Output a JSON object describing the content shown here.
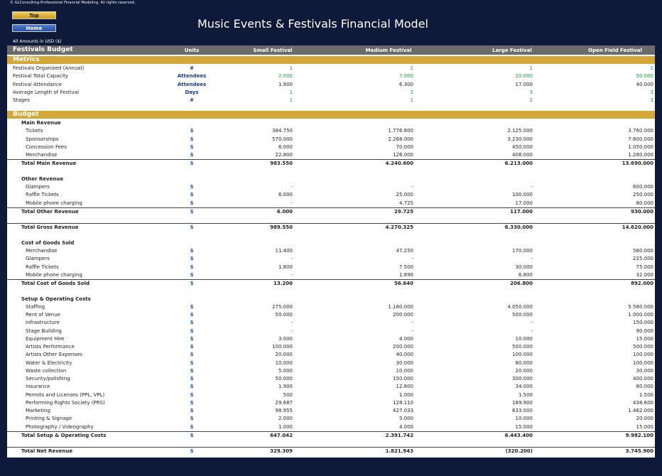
{
  "header": {
    "copyright": "© GLConsulting-Professional Financial Modeling. All rights reserved.",
    "top_label": "Top",
    "home_label": "Home",
    "title": "Music Events & Festivals Financial Model",
    "amounts_note": "All Amounts in  USD ($)"
  },
  "table": {
    "title": "Festivals Budget",
    "columns": [
      "Units",
      "Small Festival",
      "Medium Festival",
      "Large Festival",
      "Open Field Festival"
    ]
  },
  "metrics": {
    "title": "Metrics",
    "rows": [
      {
        "label": "Festivals Organized (Annual)",
        "unit": "#",
        "v": [
          "1",
          "1",
          "1",
          "1"
        ]
      },
      {
        "label": "Festival Total Capacity",
        "unit": "Attendees",
        "v": [
          "2.000",
          "7.000",
          "20.000",
          "50.000"
        ]
      },
      {
        "label": "Festival Attendance",
        "unit": "Attendees",
        "v": [
          "1.900",
          "6.300",
          "17.000",
          "40.000"
        ]
      },
      {
        "label": "Average Length of Festival",
        "unit": "Days",
        "v": [
          "1",
          "2",
          "3",
          "3"
        ]
      },
      {
        "label": "Stages",
        "unit": "#",
        "v": [
          "1",
          "1",
          "2",
          "3"
        ]
      }
    ]
  },
  "budget": {
    "title": "Budget",
    "main_revenue": {
      "title": "Main Revenue",
      "rows": [
        {
          "label": "Tickets",
          "unit": "$",
          "v": [
            "384.750",
            "1.776.600",
            "2.125.000",
            "3.760.000"
          ]
        },
        {
          "label": "Sponsorships",
          "unit": "$",
          "v": [
            "570.000",
            "2.268.000",
            "3.230.000",
            "7.600.000"
          ]
        },
        {
          "label": "Concession Fees",
          "unit": "$",
          "v": [
            "6.000",
            "70.000",
            "450.000",
            "1.050.000"
          ]
        },
        {
          "label": "Merchandise",
          "unit": "$",
          "v": [
            "22.800",
            "126.000",
            "408.000",
            "1.280.000"
          ]
        }
      ],
      "total": {
        "label": "Total Main Revenue",
        "unit": "$",
        "v": [
          "983.550",
          "4.240.600",
          "6.213.000",
          "13.690.000"
        ]
      }
    },
    "other_revenue": {
      "title": "Other Revenue",
      "rows": [
        {
          "label": "Glampers",
          "unit": "$",
          "v": [
            "-",
            "-",
            "-",
            "600.000"
          ]
        },
        {
          "label": "Raffle Tickets",
          "unit": "$",
          "v": [
            "6.000",
            "25.000",
            "100.000",
            "250.000"
          ]
        },
        {
          "label": "Mobile phone charging",
          "unit": "$",
          "v": [
            "-",
            "4.725",
            "17.000",
            "80.000"
          ]
        }
      ],
      "total": {
        "label": "Total Other Revenue",
        "unit": "$",
        "v": [
          "6.000",
          "29.725",
          "117.000",
          "930.000"
        ]
      }
    },
    "gross": {
      "label": "Total Gross Revenue",
      "unit": "$",
      "v": [
        "989.550",
        "4.270.325",
        "6.330.000",
        "14.620.000"
      ]
    },
    "cogs": {
      "title": "Cost of Goods Sold",
      "rows": [
        {
          "label": "Merchandise",
          "unit": "$",
          "v": [
            "11.400",
            "47.250",
            "170.000",
            "560.000"
          ]
        },
        {
          "label": "Glampers",
          "unit": "$",
          "v": [
            "-",
            "-",
            "-",
            "225.000"
          ]
        },
        {
          "label": "Raffle Tickets",
          "unit": "$",
          "v": [
            "1.800",
            "7.500",
            "30.000",
            "75.000"
          ]
        },
        {
          "label": "Mobile phone charging",
          "unit": "$",
          "v": [
            "-",
            "1.890",
            "6.800",
            "32.000"
          ]
        }
      ],
      "total": {
        "label": "Total Cost of Goods Sold",
        "unit": "$",
        "v": [
          "13.200",
          "56.640",
          "206.800",
          "892.000"
        ]
      }
    },
    "setup": {
      "title": "Setup & Operating Costs",
      "rows": [
        {
          "label": "Staffing",
          "unit": "$",
          "v": [
            "275.000",
            "1.180.000",
            "4.050.000",
            "5.580.000"
          ]
        },
        {
          "label": "Rent of Venue",
          "unit": "$",
          "v": [
            "50.000",
            "200.000",
            "500.000",
            "1.000.000"
          ]
        },
        {
          "label": "Infrastructure",
          "unit": "$",
          "v": [
            "-",
            "-",
            "-",
            "150.000"
          ]
        },
        {
          "label": "Stage Building",
          "unit": "$",
          "v": [
            "-",
            "-",
            "-",
            "90.000"
          ]
        },
        {
          "label": "Equipment Hire",
          "unit": "$",
          "v": [
            "3.000",
            "4.000",
            "10.000",
            "15.000"
          ]
        },
        {
          "label": "Artists Performance",
          "unit": "$",
          "v": [
            "100.000",
            "200.000",
            "500.000",
            "500.000"
          ]
        },
        {
          "label": "Artists Other Expenses",
          "unit": "$",
          "v": [
            "20.000",
            "40.000",
            "100.000",
            "100.000"
          ]
        },
        {
          "label": "Water & Electricity",
          "unit": "$",
          "v": [
            "10.000",
            "30.000",
            "80.000",
            "100.000"
          ]
        },
        {
          "label": "Waste collection",
          "unit": "$",
          "v": [
            "5.000",
            "10.000",
            "20.000",
            "30.000"
          ]
        },
        {
          "label": "Security/polishing",
          "unit": "$",
          "v": [
            "50.000",
            "150.000",
            "300.000",
            "400.000"
          ]
        },
        {
          "label": "Insurance",
          "unit": "$",
          "v": [
            "1.900",
            "12.600",
            "34.000",
            "80.000"
          ]
        },
        {
          "label": "Permits and Licenses (PPL, VPL)",
          "unit": "$",
          "v": [
            "500",
            "1.000",
            "1.500",
            "1.500"
          ]
        },
        {
          "label": "Performing Rights Society (PRS)",
          "unit": "$",
          "v": [
            "29.687",
            "128.110",
            "189.900",
            "438.600"
          ]
        },
        {
          "label": "Marketing",
          "unit": "$",
          "v": [
            "98.955",
            "427.033",
            "633.000",
            "1.462.000"
          ]
        },
        {
          "label": "Printing & Signage",
          "unit": "$",
          "v": [
            "2.000",
            "5.000",
            "10.000",
            "20.000"
          ]
        },
        {
          "label": "Photography / Videography",
          "unit": "$",
          "v": [
            "1.000",
            "4.000",
            "15.000",
            "15.000"
          ]
        }
      ],
      "total": {
        "label": "Total Setup & Operating Costs",
        "unit": "$",
        "v": [
          "647.042",
          "2.391.742",
          "6.443.400",
          "9.982.100"
        ]
      }
    },
    "net": {
      "label": "Total Net Revenue",
      "unit": "$",
      "v": [
        "329.309",
        "1.821.943",
        "(320.200)",
        "3.745.900"
      ]
    }
  }
}
